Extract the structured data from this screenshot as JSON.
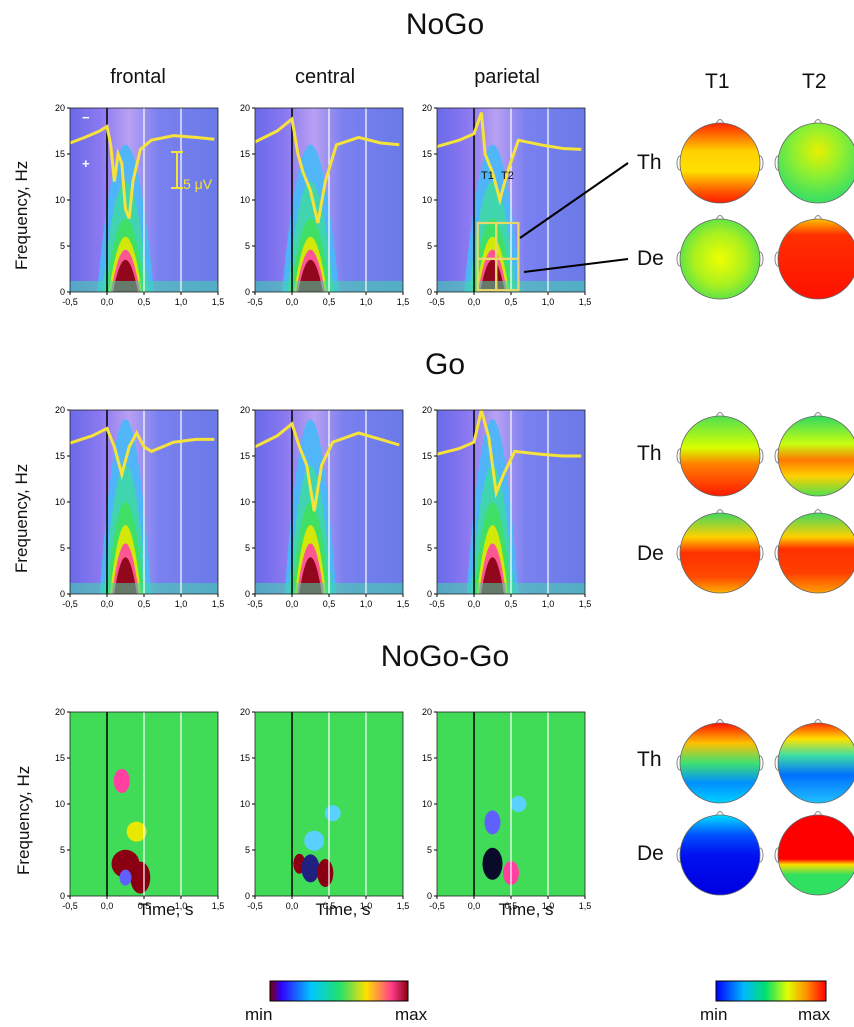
{
  "figure": {
    "sections": [
      "NoGo",
      "Go",
      "NoGo-Go"
    ],
    "columns": [
      "frontal",
      "central",
      "parietal"
    ],
    "topo_columns": [
      "T1",
      "T2"
    ],
    "topo_rows": [
      "Th",
      "De"
    ],
    "ylabel": "Frequency, Hz",
    "xlabel": "Time, s",
    "scale_bar": "5 μV",
    "window_labels": [
      "T1",
      "T2"
    ],
    "polarity_marks": [
      "−",
      "+"
    ],
    "colorbar_left": {
      "min": "min",
      "max": "max",
      "colors": [
        "#7a0000",
        "#2b00ff",
        "#00d0ff",
        "#20e070",
        "#ffe000",
        "#ff3c8c",
        "#8a0012"
      ]
    },
    "colorbar_right": {
      "min": "min",
      "max": "max",
      "colors": [
        "#0000ff",
        "#00b8ff",
        "#00e070",
        "#e0ff00",
        "#ff9000",
        "#ff0000"
      ]
    },
    "colors": {
      "erp_trace": "#f5e23a",
      "window_box": "#e8d86a"
    }
  },
  "chart_data": {
    "type": "heatmap",
    "x_ticks": [
      "-0,5",
      "0,0",
      "0,5",
      "1,0",
      "1,5"
    ],
    "y_ticks": [
      "0",
      "5",
      "10",
      "15",
      "20"
    ],
    "xlim": [
      -0.5,
      1.5
    ],
    "ylim": [
      0,
      20
    ],
    "panels": [
      {
        "condition": "NoGo",
        "region": "frontal",
        "erp": [
          [
            -0.5,
            16.2
          ],
          [
            -0.3,
            16.8
          ],
          [
            -0.1,
            17.5
          ],
          [
            0.0,
            18.0
          ],
          [
            0.05,
            16
          ],
          [
            0.1,
            12
          ],
          [
            0.15,
            15
          ],
          [
            0.2,
            14
          ],
          [
            0.25,
            9
          ],
          [
            0.3,
            8
          ],
          [
            0.35,
            12
          ],
          [
            0.45,
            15.5
          ],
          [
            0.6,
            16.5
          ],
          [
            0.9,
            17
          ],
          [
            1.2,
            16.8
          ],
          [
            1.45,
            16.6
          ]
        ]
      },
      {
        "condition": "NoGo",
        "region": "central",
        "erp": [
          [
            -0.5,
            16.3
          ],
          [
            -0.2,
            17.5
          ],
          [
            0.0,
            18.8
          ],
          [
            0.08,
            15
          ],
          [
            0.15,
            13
          ],
          [
            0.25,
            11
          ],
          [
            0.35,
            7.5
          ],
          [
            0.45,
            12
          ],
          [
            0.6,
            16
          ],
          [
            0.9,
            16.8
          ],
          [
            1.2,
            16.2
          ],
          [
            1.45,
            16.0
          ]
        ]
      },
      {
        "condition": "NoGo",
        "region": "parietal",
        "erp": [
          [
            -0.5,
            15.8
          ],
          [
            -0.2,
            16.5
          ],
          [
            0.0,
            17.2
          ],
          [
            0.1,
            19.5
          ],
          [
            0.15,
            15
          ],
          [
            0.25,
            13
          ],
          [
            0.35,
            10
          ],
          [
            0.45,
            13
          ],
          [
            0.6,
            16.5
          ],
          [
            0.9,
            16.0
          ],
          [
            1.2,
            15.6
          ],
          [
            1.45,
            15.5
          ]
        ]
      },
      {
        "condition": "Go",
        "region": "frontal",
        "erp": [
          [
            -0.5,
            16.4
          ],
          [
            -0.2,
            17.2
          ],
          [
            0.0,
            18.0
          ],
          [
            0.1,
            16
          ],
          [
            0.2,
            13
          ],
          [
            0.3,
            16
          ],
          [
            0.4,
            17.5
          ],
          [
            0.5,
            16
          ],
          [
            0.6,
            15.5
          ],
          [
            0.9,
            16.5
          ],
          [
            1.2,
            16.8
          ],
          [
            1.45,
            16.8
          ]
        ]
      },
      {
        "condition": "Go",
        "region": "central",
        "erp": [
          [
            -0.5,
            16.0
          ],
          [
            -0.2,
            17.2
          ],
          [
            0.0,
            18.5
          ],
          [
            0.1,
            16
          ],
          [
            0.2,
            14
          ],
          [
            0.3,
            9
          ],
          [
            0.4,
            14
          ],
          [
            0.55,
            16.5
          ],
          [
            0.9,
            17.5
          ],
          [
            1.2,
            16.8
          ],
          [
            1.45,
            16.2
          ]
        ]
      },
      {
        "condition": "Go",
        "region": "parietal",
        "erp": [
          [
            -0.5,
            15.2
          ],
          [
            -0.2,
            15.8
          ],
          [
            0.0,
            16.5
          ],
          [
            0.1,
            20
          ],
          [
            0.2,
            17
          ],
          [
            0.3,
            11
          ],
          [
            0.4,
            13
          ],
          [
            0.55,
            15.5
          ],
          [
            0.9,
            15.2
          ],
          [
            1.2,
            15.0
          ],
          [
            1.45,
            15.0
          ]
        ]
      },
      {
        "condition": "NoGo-Go",
        "region": "frontal"
      },
      {
        "condition": "NoGo-Go",
        "region": "central"
      },
      {
        "condition": "NoGo-Go",
        "region": "parietal"
      }
    ]
  }
}
